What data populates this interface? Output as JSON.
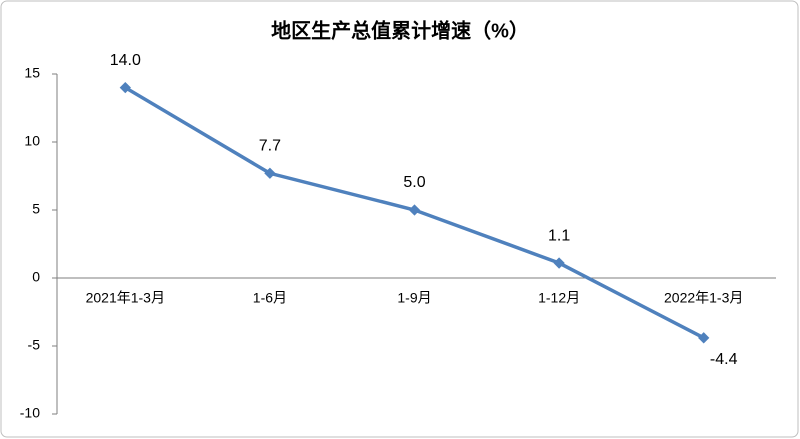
{
  "chart_data": {
    "type": "line",
    "title": "地区生产总值累计增速（%）",
    "categories": [
      "2021年1-3月",
      "1-6月",
      "1-9月",
      "1-12月",
      "2022年1-3月"
    ],
    "values": [
      14.0,
      7.7,
      5.0,
      1.1,
      -4.4
    ],
    "value_labels": [
      "14.0",
      "7.7",
      "5.0",
      "1.1",
      "-4.4"
    ],
    "color": "#4f81bd",
    "ylim": [
      -10,
      15
    ],
    "yticks": [
      -10,
      -5,
      0,
      5,
      10,
      15
    ]
  }
}
